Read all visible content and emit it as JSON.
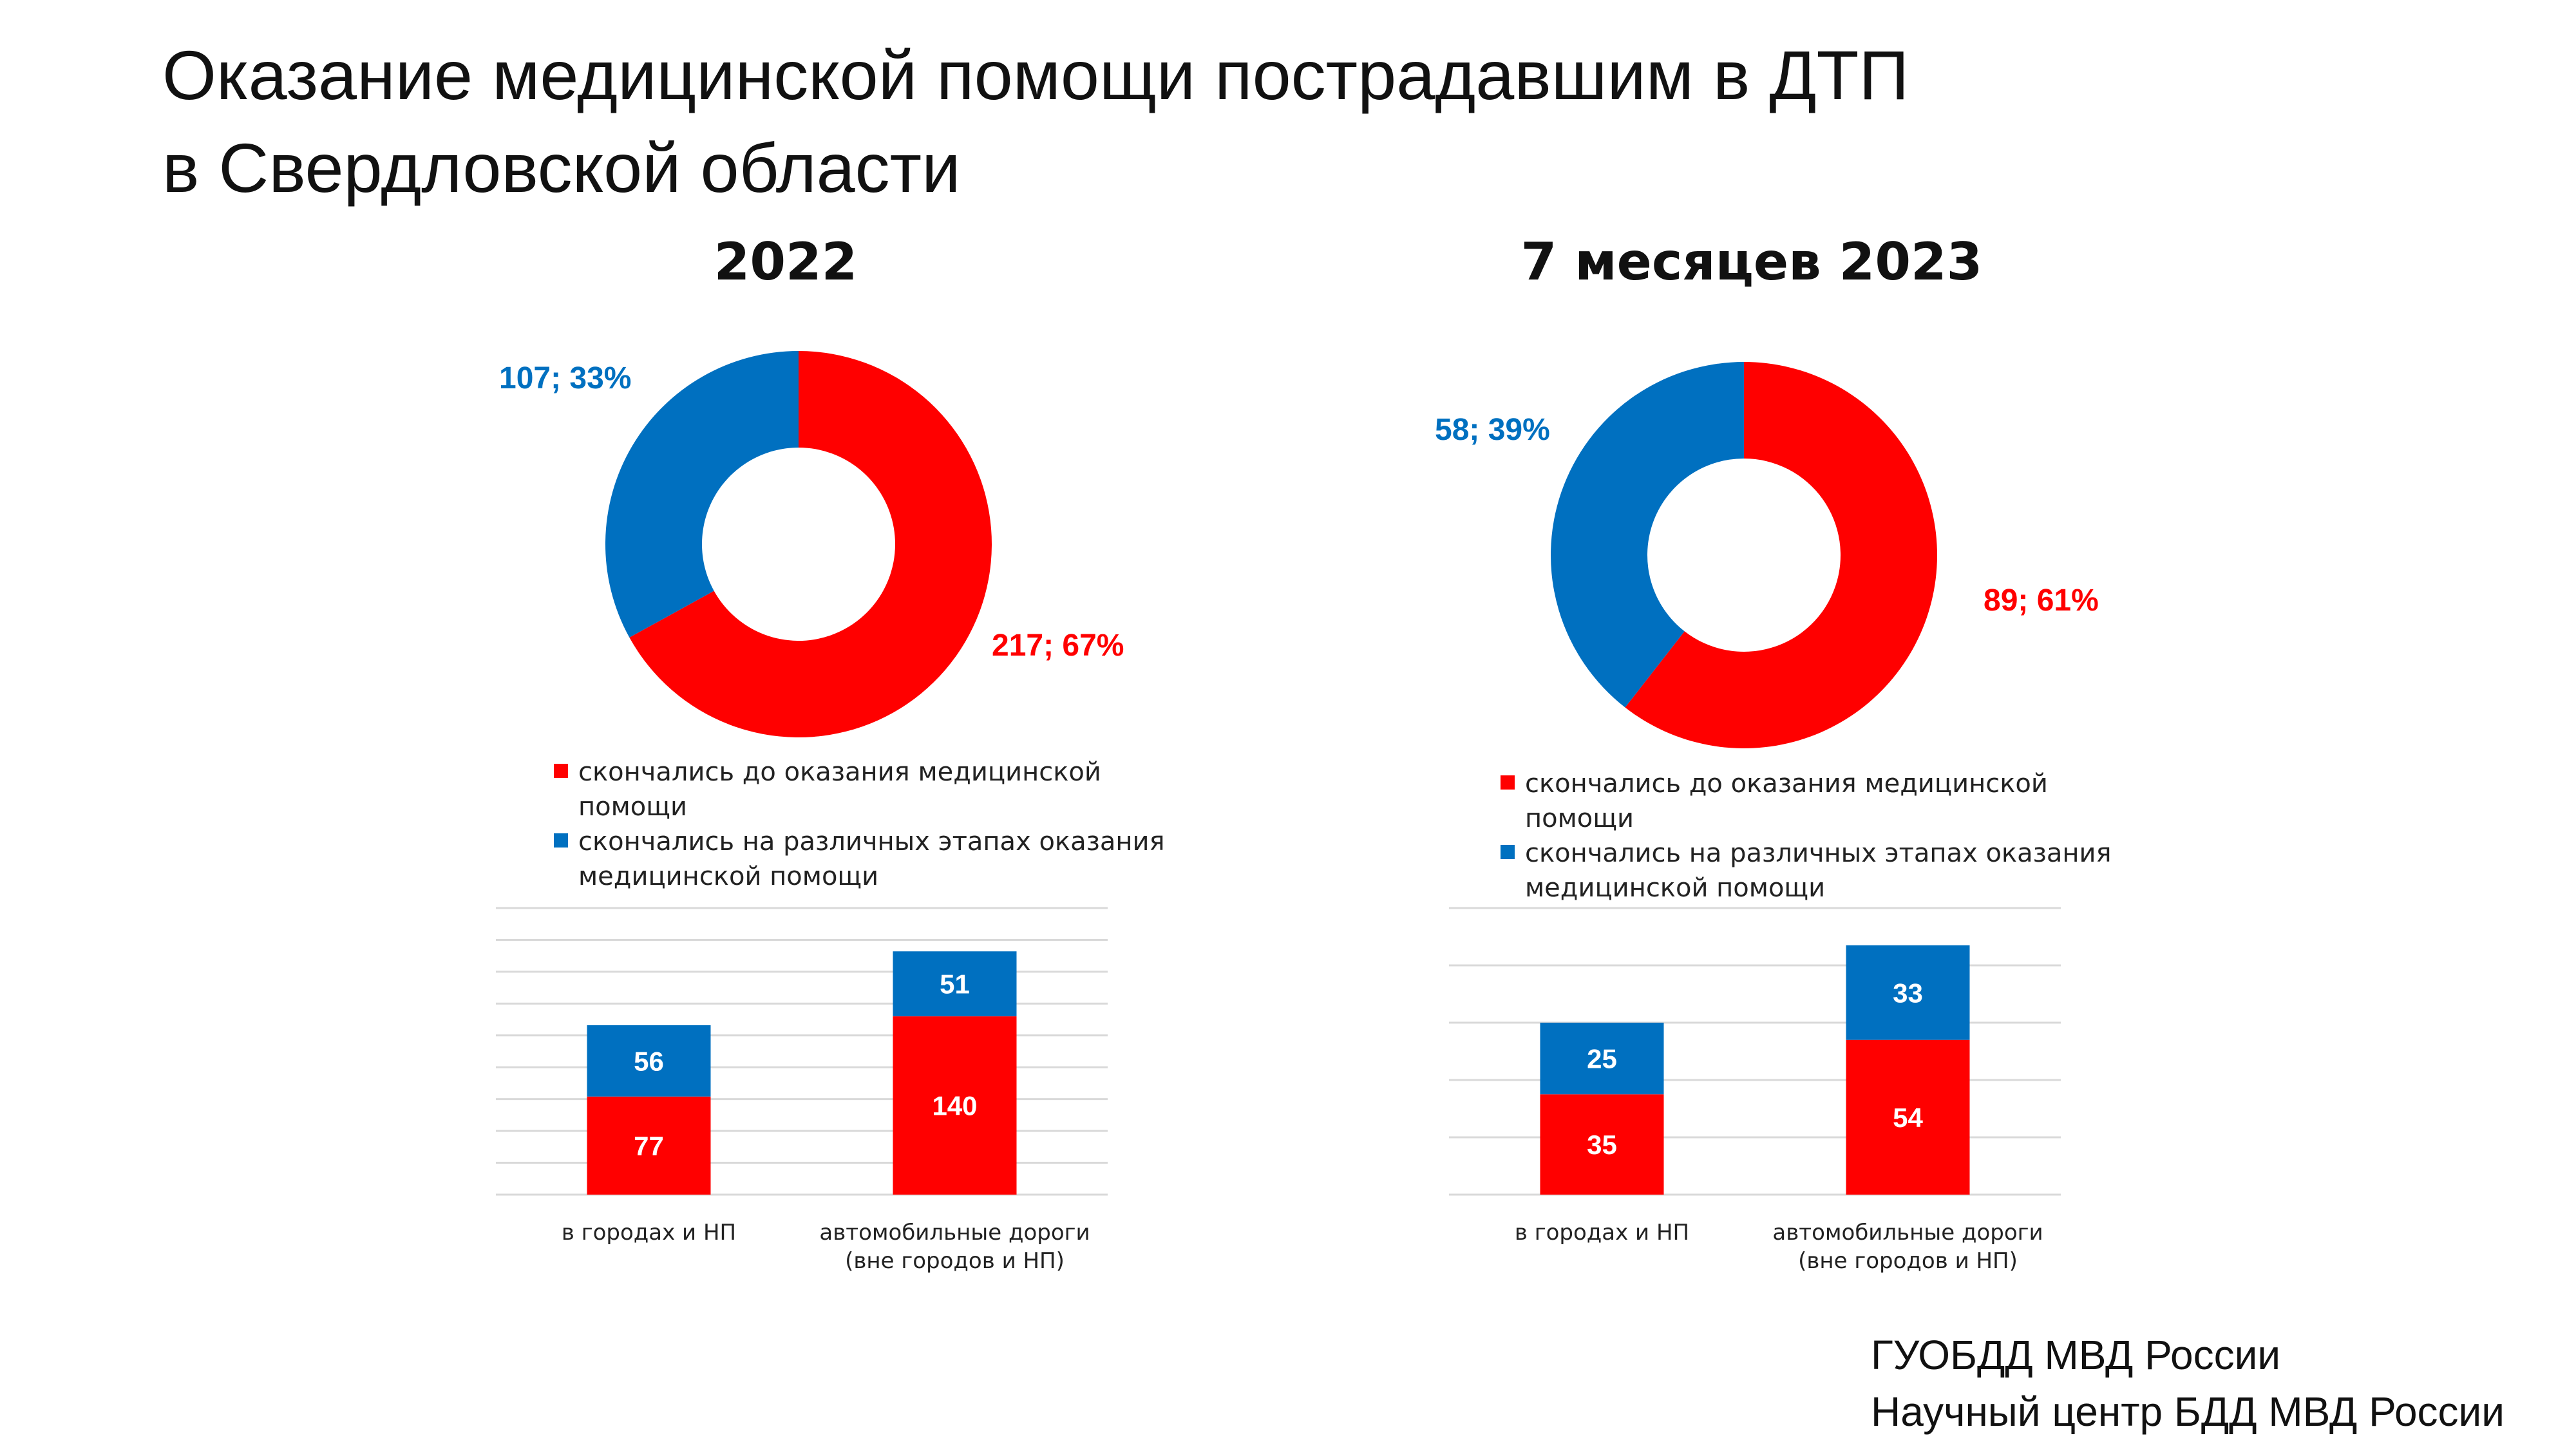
{
  "title": {
    "line1": "Оказание медицинской помощи пострадавшим в ДТП",
    "line2": "в Свердловской области"
  },
  "colors": {
    "red": "#FF0000",
    "blue": "#0070C0",
    "grid": "#D9D9D9"
  },
  "legend": [
    {
      "label": "скончались до оказания медицинской помощи",
      "color": "#FF0000"
    },
    {
      "label": "скончались на различных этапах оказания медицинской помощи",
      "color": "#0070C0"
    }
  ],
  "source": {
    "line1": "ГУОБДД МВД России",
    "line2": "Научный центр БДД МВД России"
  },
  "chart_data": [
    {
      "type": "pie",
      "variant": "donut",
      "title": "2022",
      "slices": [
        {
          "name": "скончались до оказания медицинской помощи",
          "value": 217,
          "percent": 67,
          "label": "217; 67%",
          "color": "#FF0000"
        },
        {
          "name": "скончались на различных этапах оказания медицинской помощи",
          "value": 107,
          "percent": 33,
          "label": "107; 33%",
          "color": "#0070C0"
        }
      ]
    },
    {
      "type": "bar",
      "stacked": true,
      "title": "",
      "categories": [
        "в городах и НП",
        "автомобильные дороги (вне городов и НП)"
      ],
      "series": [
        {
          "name": "скончались до оказания медицинской помощи",
          "values": [
            77,
            140
          ],
          "color": "#FF0000"
        },
        {
          "name": "скончались на различных этапах оказания медицинской помощи",
          "values": [
            56,
            51
          ],
          "color": "#0070C0"
        }
      ],
      "ylim": [
        0,
        225
      ],
      "grid": true
    },
    {
      "type": "pie",
      "variant": "donut",
      "title": "7 месяцев 2023",
      "slices": [
        {
          "name": "скончались до оказания медицинской помощи",
          "value": 89,
          "percent": 61,
          "label": "89; 61%",
          "color": "#FF0000"
        },
        {
          "name": "скончались на различных этапах оказания медицинской помощи",
          "value": 58,
          "percent": 39,
          "label": "58; 39%",
          "color": "#0070C0"
        }
      ]
    },
    {
      "type": "bar",
      "stacked": true,
      "title": "",
      "categories": [
        "в городах и НП",
        "автомобильные дороги (вне городов и НП)"
      ],
      "series": [
        {
          "name": "скончались до оказания медицинской помощи",
          "values": [
            35,
            54
          ],
          "color": "#FF0000"
        },
        {
          "name": "скончались на различных этапах оказания медицинской помощи",
          "values": [
            25,
            33
          ],
          "color": "#0070C0"
        }
      ],
      "ylim": [
        0,
        100
      ],
      "grid": true
    }
  ]
}
